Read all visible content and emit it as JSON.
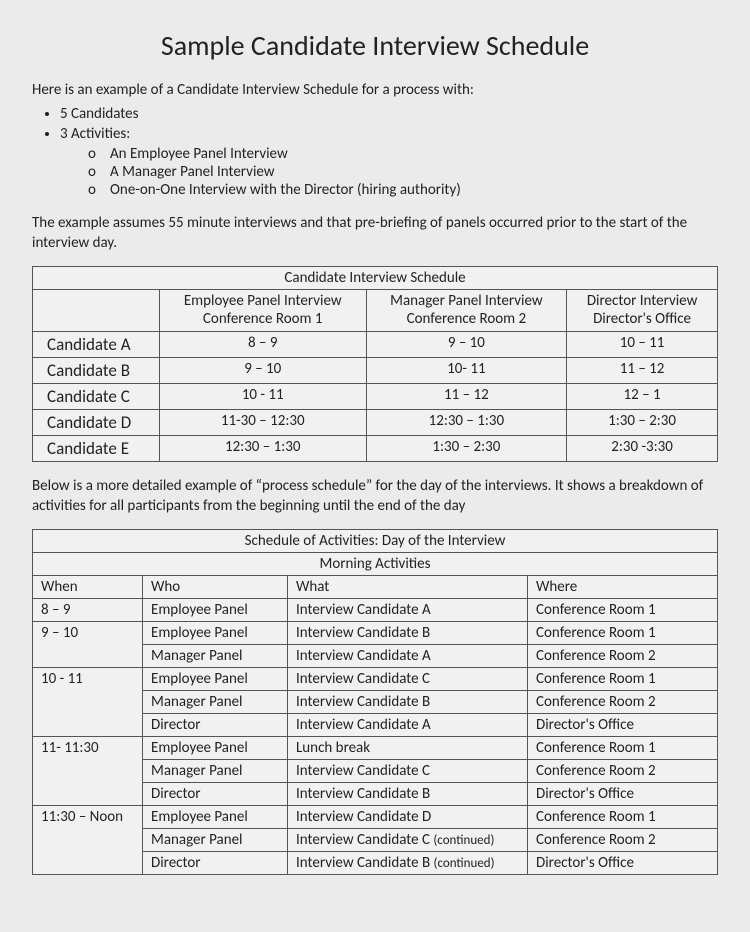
{
  "title": "Sample Candidate Interview Schedule",
  "intro": "Here is an example of a Candidate Interview Schedule for a process with:",
  "bullets": {
    "b1": "5 Candidates",
    "b2": "3 Activities:",
    "s1": "An Employee Panel Interview",
    "s2": "A Manager Panel Interview",
    "s3": "One-on-One Interview with the Director (hiring authority)"
  },
  "note1": "The example assumes 55 minute interviews and that pre-briefing of panels occurred prior to the start of the interview day.",
  "schedule": {
    "title": "Candidate Interview Schedule",
    "headers": {
      "c1a": "Employee Panel Interview",
      "c1b": "Conference Room 1",
      "c2a": "Manager Panel Interview",
      "c2b": "Conference Room 2",
      "c3a": "Director Interview",
      "c3b": "Director's Office"
    },
    "rows": [
      {
        "cand": "Candidate A",
        "t1": "8 – 9",
        "t2": "9 – 10",
        "t3": "10 – 11"
      },
      {
        "cand": "Candidate B",
        "t1": "9 – 10",
        "t2": "10- 11",
        "t3": "11 – 12"
      },
      {
        "cand": "Candidate C",
        "t1": "10 - 11",
        "t2": "11 – 12",
        "t3": "12 – 1"
      },
      {
        "cand": "Candidate D",
        "t1": "11-30 – 12:30",
        "t2": "12:30 – 1:30",
        "t3": "1:30 – 2:30"
      },
      {
        "cand": "Candidate E",
        "t1": "12:30 – 1:30",
        "t2": "1:30 – 2:30",
        "t3": "2:30 -3:30"
      }
    ]
  },
  "note2": "Below is a more detailed example of “process schedule” for the day of the interviews.  It shows a breakdown of activities for all participants from the beginning until the end of the day",
  "activities": {
    "title": "Schedule of Activities: Day of the Interview",
    "subtitle": "Morning Activities",
    "cols": {
      "when": "When",
      "who": "Who",
      "what": "What",
      "where": "Where"
    },
    "blocks": [
      {
        "when": "8 – 9",
        "rows": [
          {
            "who": "Employee Panel",
            "what": "Interview Candidate A",
            "where": "Conference Room 1"
          }
        ]
      },
      {
        "when": "9 – 10",
        "rows": [
          {
            "who": "Employee Panel",
            "what": "Interview Candidate B",
            "where": "Conference Room 1"
          },
          {
            "who": "Manager Panel",
            "what": "Interview Candidate A",
            "where": "Conference Room 2"
          }
        ]
      },
      {
        "when": "10 - 11",
        "rows": [
          {
            "who": "Employee Panel",
            "what": "Interview Candidate C",
            "where": "Conference Room 1"
          },
          {
            "who": "Manager Panel",
            "what": "Interview Candidate B",
            "where": "Conference Room 2"
          },
          {
            "who": "Director",
            "what": "Interview Candidate A",
            "where": "Director's Office"
          }
        ]
      },
      {
        "when": "11- 11:30",
        "rows": [
          {
            "who": "Employee Panel",
            "what": "Lunch break",
            "where": "Conference Room 1"
          },
          {
            "who": "Manager Panel",
            "what": "Interview Candidate C",
            "where": "Conference Room 2"
          },
          {
            "who": "Director",
            "what": "Interview Candidate B",
            "where": "Director's Office"
          }
        ]
      },
      {
        "when": "11:30 – Noon",
        "rows": [
          {
            "who": "Employee Panel",
            "what": "Interview Candidate D",
            "where": "Conference Room 1"
          },
          {
            "who": "Manager Panel",
            "what": "Interview Candidate C ",
            "cont": "(continued)",
            "where": "Conference Room 2"
          },
          {
            "who": "Director",
            "what": "Interview Candidate B ",
            "cont": "(continued)",
            "where": "Director's Office"
          }
        ]
      }
    ]
  }
}
